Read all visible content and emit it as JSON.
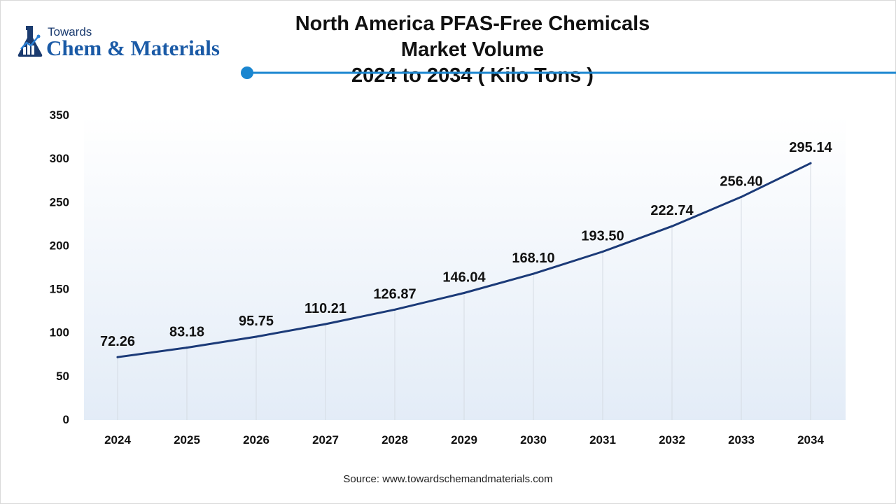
{
  "logo": {
    "line1": "Towards",
    "line2": "Chem & Materials",
    "icon": "flask-chart-icon"
  },
  "title_line1": "North America PFAS-Free Chemicals Market Volume",
  "title_line2": "2024 to 2034 ( Kilo Tons )",
  "source": "Source: www.towardschemandmaterials.com",
  "colors": {
    "line": "#1b3a78",
    "accent": "#1a86d0",
    "plot_bg_top": "#ffffff",
    "plot_bg_bottom": "#e3ecf7",
    "drop_line": "#d5dbe3"
  },
  "chart_data": {
    "type": "line",
    "title": "North America PFAS-Free Chemicals Market Volume 2024 to 2034 ( Kilo Tons )",
    "xlabel": "",
    "ylabel": "",
    "categories": [
      "2024",
      "2025",
      "2026",
      "2027",
      "2028",
      "2029",
      "2030",
      "2031",
      "2032",
      "2033",
      "2034"
    ],
    "values": [
      72.26,
      83.18,
      95.75,
      110.21,
      126.87,
      146.04,
      168.1,
      193.5,
      222.74,
      256.4,
      295.14
    ],
    "labels": [
      "72.26",
      "83.18",
      "95.75",
      "110.21",
      "126.87",
      "146.04",
      "168.10",
      "193.50",
      "222.74",
      "256.40",
      "295.14"
    ],
    "ylim": [
      0,
      350
    ],
    "yticks": [
      "0",
      "50",
      "100",
      "150",
      "200",
      "250",
      "300",
      "350"
    ],
    "grid": false,
    "legend": "none"
  }
}
